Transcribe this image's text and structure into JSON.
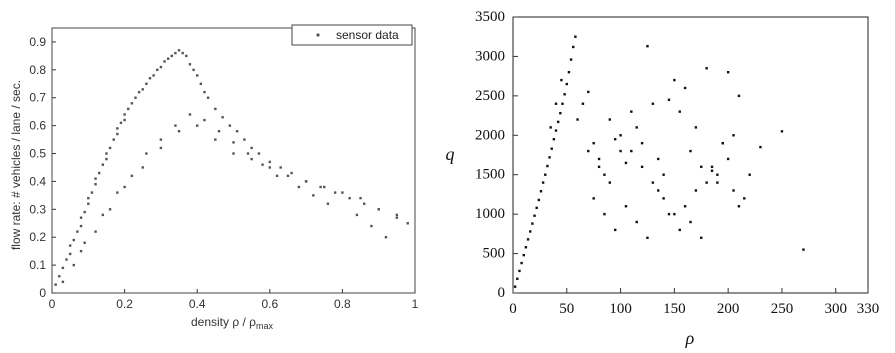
{
  "chart_data": [
    {
      "type": "scatter",
      "xlabel": "density ρ / ρ",
      "xlabel_sub": "max",
      "ylabel": "flow rate: # vehicles / lane / sec.",
      "xlim": [
        0,
        1
      ],
      "ylim": [
        0,
        0.95
      ],
      "x_ticks": [
        "0",
        "0.2",
        "0.4",
        "0.6",
        "0.8",
        "1"
      ],
      "y_ticks": [
        "0",
        "0.1",
        "0.2",
        "0.3",
        "0.4",
        "0.5",
        "0.6",
        "0.7",
        "0.8",
        "0.9"
      ],
      "legend": {
        "label": "sensor data",
        "position": "top-right"
      },
      "series": [
        {
          "name": "sensor data",
          "color": "#555555",
          "x": [
            0.01,
            0.02,
            0.03,
            0.04,
            0.05,
            0.05,
            0.06,
            0.07,
            0.08,
            0.08,
            0.09,
            0.1,
            0.1,
            0.11,
            0.12,
            0.12,
            0.13,
            0.14,
            0.15,
            0.15,
            0.16,
            0.17,
            0.18,
            0.18,
            0.19,
            0.2,
            0.2,
            0.21,
            0.22,
            0.23,
            0.24,
            0.25,
            0.26,
            0.27,
            0.28,
            0.29,
            0.3,
            0.31,
            0.32,
            0.33,
            0.34,
            0.35,
            0.36,
            0.37,
            0.38,
            0.39,
            0.4,
            0.41,
            0.42,
            0.43,
            0.45,
            0.47,
            0.49,
            0.51,
            0.53,
            0.55,
            0.57,
            0.6,
            0.63,
            0.66,
            0.7,
            0.74,
            0.78,
            0.82,
            0.86,
            0.9,
            0.95,
            0.98,
            0.08,
            0.12,
            0.16,
            0.2,
            0.25,
            0.3,
            0.35,
            0.4,
            0.45,
            0.5,
            0.55,
            0.6,
            0.65,
            0.7,
            0.75,
            0.8,
            0.85,
            0.9,
            0.95,
            0.03,
            0.06,
            0.09,
            0.14,
            0.18,
            0.22,
            0.26,
            0.3,
            0.34,
            0.38,
            0.42,
            0.46,
            0.5,
            0.54,
            0.58,
            0.62,
            0.68,
            0.72,
            0.76,
            0.84,
            0.88,
            0.92
          ],
          "y": [
            0.03,
            0.06,
            0.09,
            0.12,
            0.14,
            0.17,
            0.19,
            0.22,
            0.24,
            0.27,
            0.29,
            0.32,
            0.34,
            0.36,
            0.39,
            0.41,
            0.43,
            0.46,
            0.48,
            0.5,
            0.52,
            0.55,
            0.57,
            0.59,
            0.61,
            0.62,
            0.64,
            0.66,
            0.68,
            0.7,
            0.72,
            0.73,
            0.75,
            0.77,
            0.78,
            0.8,
            0.81,
            0.83,
            0.84,
            0.85,
            0.86,
            0.87,
            0.86,
            0.85,
            0.82,
            0.8,
            0.78,
            0.75,
            0.72,
            0.7,
            0.66,
            0.63,
            0.6,
            0.58,
            0.55,
            0.52,
            0.5,
            0.47,
            0.45,
            0.43,
            0.4,
            0.38,
            0.36,
            0.34,
            0.32,
            0.3,
            0.27,
            0.25,
            0.15,
            0.22,
            0.3,
            0.38,
            0.45,
            0.52,
            0.58,
            0.6,
            0.55,
            0.5,
            0.48,
            0.45,
            0.42,
            0.4,
            0.38,
            0.36,
            0.34,
            0.3,
            0.28,
            0.04,
            0.1,
            0.18,
            0.28,
            0.36,
            0.42,
            0.5,
            0.55,
            0.6,
            0.64,
            0.62,
            0.58,
            0.54,
            0.5,
            0.46,
            0.42,
            0.38,
            0.35,
            0.32,
            0.28,
            0.24,
            0.2
          ]
        }
      ]
    },
    {
      "type": "scatter",
      "xlabel": "ρ",
      "ylabel": "q",
      "xlim": [
        0,
        330
      ],
      "ylim": [
        0,
        3500
      ],
      "x_ticks": [
        "0",
        "50",
        "100",
        "150",
        "200",
        "250",
        "300",
        "330"
      ],
      "y_ticks": [
        "0",
        "500",
        "1000",
        "1500",
        "2000",
        "2500",
        "3000",
        "3500"
      ],
      "series": [
        {
          "color": "#111111",
          "x": [
            2,
            4,
            6,
            8,
            10,
            12,
            14,
            16,
            18,
            20,
            22,
            24,
            26,
            28,
            30,
            32,
            34,
            36,
            38,
            40,
            42,
            44,
            46,
            48,
            50,
            52,
            54,
            56,
            58,
            45,
            40,
            35,
            60,
            65,
            70,
            75,
            80,
            85,
            90,
            95,
            100,
            105,
            110,
            115,
            120,
            125,
            130,
            135,
            140,
            145,
            150,
            155,
            160,
            165,
            170,
            175,
            180,
            185,
            190,
            195,
            200,
            205,
            210,
            215,
            220,
            230,
            250,
            270,
            70,
            80,
            90,
            100,
            110,
            120,
            130,
            140,
            150,
            160,
            170,
            180,
            190,
            200,
            210,
            75,
            85,
            95,
            105,
            115,
            125,
            135,
            145,
            155,
            165,
            175,
            185,
            195,
            205
          ],
          "y": [
            80,
            180,
            280,
            380,
            480,
            580,
            680,
            780,
            880,
            980,
            1080,
            1180,
            1290,
            1400,
            1500,
            1610,
            1720,
            1830,
            1950,
            2060,
            2170,
            2280,
            2400,
            2520,
            2650,
            2800,
            2960,
            3120,
            3250,
            2700,
            2400,
            2100,
            2200,
            2400,
            2550,
            1900,
            1700,
            1500,
            2200,
            1950,
            1800,
            1650,
            2300,
            2100,
            1900,
            3130,
            2400,
            1700,
            1500,
            2450,
            2700,
            2300,
            2600,
            1800,
            2100,
            1600,
            2850,
            1550,
            1400,
            1900,
            2800,
            1300,
            1100,
            1200,
            1500,
            1850,
            2050,
            550,
            1800,
            1600,
            1400,
            2000,
            1800,
            1600,
            1400,
            1200,
            1000,
            1100,
            1300,
            1400,
            1500,
            1700,
            2500,
            1200,
            1000,
            800,
            1100,
            900,
            700,
            1300,
            1000,
            800,
            900,
            700,
            1600,
            1900,
            2000
          ]
        }
      ]
    }
  ]
}
